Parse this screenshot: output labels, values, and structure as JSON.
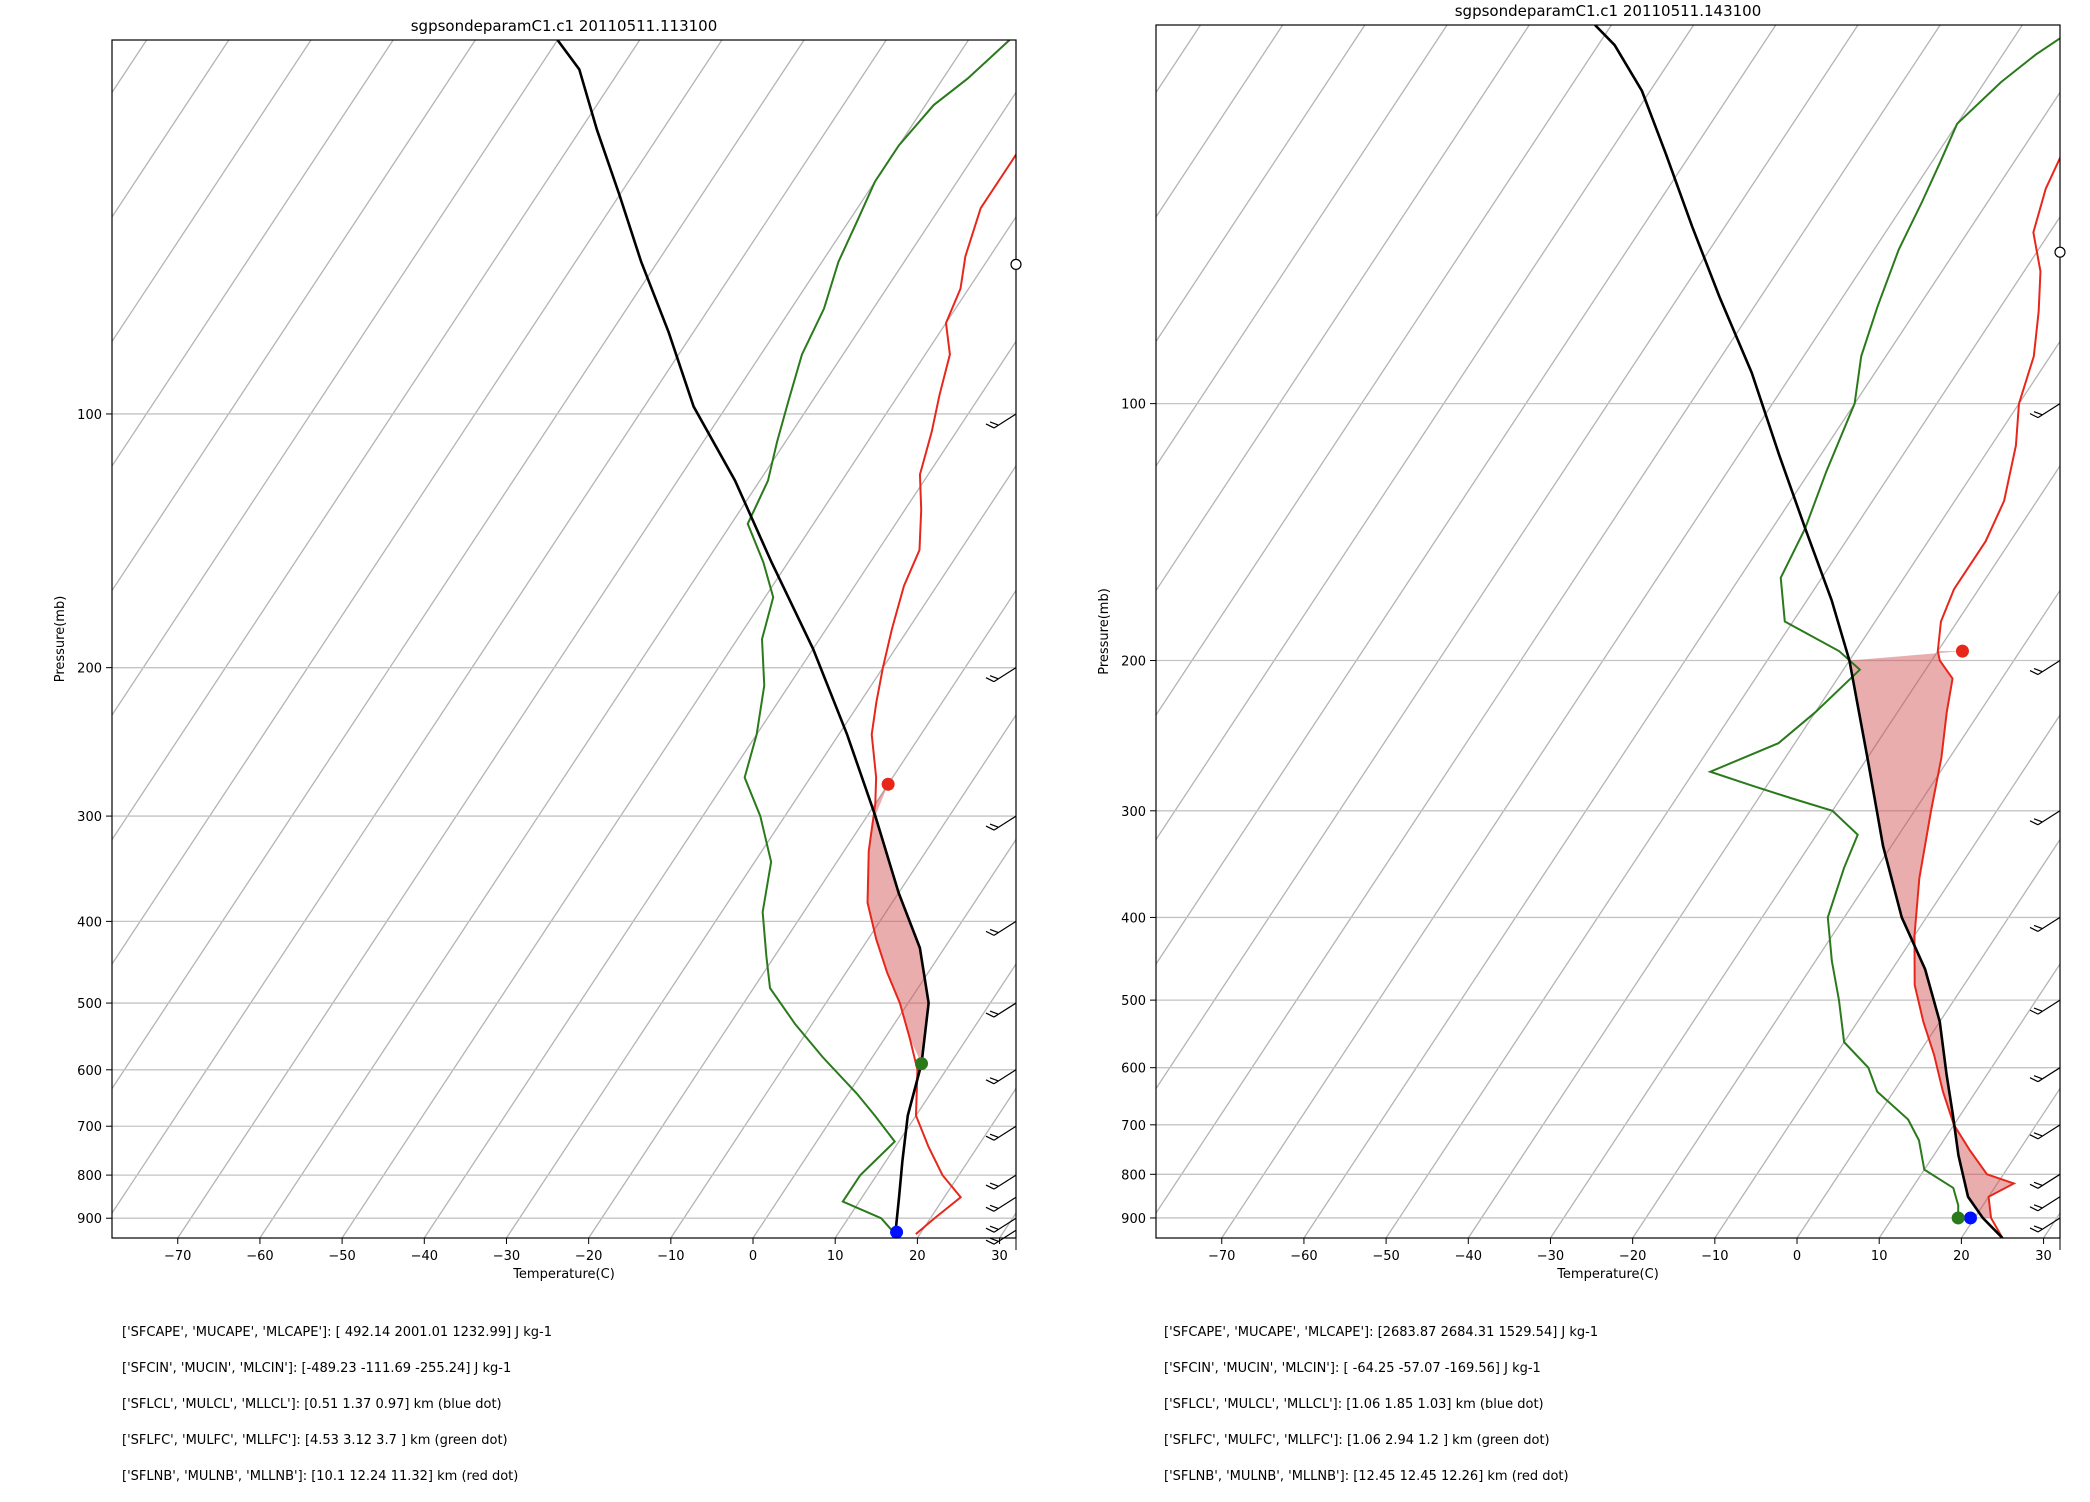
{
  "chart_data": [
    {
      "type": "line",
      "title": "sgpsondeparamC1.c1  20110511.113100",
      "xlabel": "Temperature(C)",
      "ylabel": "Pressure(mb)",
      "xlim": [
        -78,
        32
      ],
      "ylim": [
        950,
        36
      ],
      "log_y": true,
      "skew": true,
      "grid": true,
      "xticks": [
        -70,
        -60,
        -50,
        -40,
        -30,
        -20,
        -10,
        0,
        10,
        20,
        30
      ],
      "yticks": [
        100,
        200,
        300,
        400,
        500,
        600,
        700,
        800,
        900
      ],
      "series": [
        {
          "color": "#e8271b",
          "points": [
            [
              19.5,
              940
            ],
            [
              20.5,
              900
            ],
            [
              22,
              850
            ],
            [
              18,
              800
            ],
            [
              14,
              740
            ],
            [
              10,
              680
            ],
            [
              6.5,
              600
            ],
            [
              3,
              550
            ],
            [
              -1,
              500
            ],
            [
              -5,
              460
            ],
            [
              -9,
              420
            ],
            [
              -13,
              380
            ],
            [
              -17,
              330
            ],
            [
              -20,
              290
            ],
            [
              -22,
              270
            ],
            [
              -26,
              240
            ],
            [
              -28,
              220
            ],
            [
              -30,
              200
            ],
            [
              -32,
              180
            ],
            [
              -34,
              160
            ],
            [
              -35,
              145
            ],
            [
              -38,
              130
            ],
            [
              -41,
              118
            ],
            [
              -43,
              105
            ],
            [
              -45,
              95
            ],
            [
              -47,
              85
            ],
            [
              -50,
              78
            ],
            [
              -51,
              71
            ],
            [
              -53,
              65
            ],
            [
              -55,
              57
            ],
            [
              -55,
              50
            ],
            [
              -55,
              46
            ],
            [
              -53,
              42
            ],
            [
              -51,
              38
            ],
            [
              -47,
              36
            ]
          ]
        },
        {
          "color": "#2a7a1c",
          "points": [
            [
              17,
              940
            ],
            [
              14,
              900
            ],
            [
              8,
              860
            ],
            [
              8,
              800
            ],
            [
              9.5,
              730
            ],
            [
              5,
              680
            ],
            [
              1,
              640
            ],
            [
              -6,
              580
            ],
            [
              -12,
              530
            ],
            [
              -18,
              480
            ],
            [
              -21,
              440
            ],
            [
              -25,
              390
            ],
            [
              -28,
              340
            ],
            [
              -33,
              300
            ],
            [
              -38,
              270
            ],
            [
              -40,
              240
            ],
            [
              -43,
              210
            ],
            [
              -47,
              185
            ],
            [
              -49,
              165
            ],
            [
              -53,
              150
            ],
            [
              -58,
              135
            ],
            [
              -59,
              120
            ],
            [
              -61,
              108
            ],
            [
              -63,
              96
            ],
            [
              -65,
              85
            ],
            [
              -66,
              75
            ],
            [
              -68,
              66
            ],
            [
              -69,
              59
            ],
            [
              -70,
              53
            ],
            [
              -70,
              48
            ],
            [
              -69,
              43
            ],
            [
              -67,
              40
            ],
            [
              -65,
              36
            ]
          ]
        },
        {
          "color": "#000000",
          "points": [
            [
              17,
              940
            ],
            [
              14.5,
              850
            ],
            [
              12,
              770
            ],
            [
              9,
              680
            ],
            [
              6.5,
              590
            ],
            [
              2.5,
              500
            ],
            [
              -3,
              430
            ],
            [
              -10,
              370
            ],
            [
              -19,
              300
            ],
            [
              -29,
              240
            ],
            [
              -40,
              190
            ],
            [
              -52,
              150
            ],
            [
              -63,
              120
            ],
            [
              -74,
              98
            ],
            [
              -83,
              80
            ],
            [
              -92,
              66
            ],
            [
              -100,
              55
            ],
            [
              -108,
              46
            ],
            [
              -115,
              39
            ],
            [
              -120,
              36
            ]
          ]
        }
      ],
      "points_of_interest": [
        {
          "name": "LCL",
          "color": "#0010ff",
          "t": 17,
          "p": 935
        },
        {
          "name": "LFC",
          "color": "#2a7a1c",
          "t": 6.5,
          "p": 590
        },
        {
          "name": "LNB",
          "color": "#e8271b",
          "t": -20,
          "p": 275
        }
      ],
      "wind_barbs": [
        100,
        200,
        300,
        400,
        500,
        600,
        700,
        800,
        850,
        900,
        930
      ],
      "info_lines": [
        "['SFCAPE', 'MUCAPE', 'MLCAPE']: [ 492.14 2001.01 1232.99] J kg-1",
        "['SFCIN', 'MUCIN', 'MLCIN']: [-489.23 -111.69 -255.24] J kg-1",
        "['SFLCL', 'MULCL', 'MLLCL']: [0.51 1.37 0.97] km (blue dot)",
        "['SFLFC', 'MULFC', 'MLLFC']: [4.53 3.12 3.7 ] km (green dot)",
        "['SFLNB', 'MULNB', 'MLLNB']: [10.1  12.24 11.32] km (red dot)"
      ]
    },
    {
      "type": "line",
      "title": "sgpsondeparamC1.c1  20110511.143100",
      "xlabel": "Temperature(C)",
      "ylabel": "Pressure(mb)",
      "xlim": [
        -78,
        32
      ],
      "ylim": [
        950,
        36
      ],
      "log_y": true,
      "skew": true,
      "grid": true,
      "xticks": [
        -70,
        -60,
        -50,
        -40,
        -30,
        -20,
        -10,
        0,
        10,
        20,
        30
      ],
      "yticks": [
        100,
        200,
        300,
        400,
        500,
        600,
        700,
        800,
        900
      ],
      "series": [
        {
          "color": "#e8271b",
          "points": [
            [
              25,
              950
            ],
            [
              22,
              900
            ],
            [
              20,
              850
            ],
            [
              22,
              820
            ],
            [
              18,
              800
            ],
            [
              14,
              750
            ],
            [
              10,
              700
            ],
            [
              6,
              640
            ],
            [
              2,
              580
            ],
            [
              -2,
              530
            ],
            [
              -6,
              480
            ],
            [
              -10,
              420
            ],
            [
              -14,
              360
            ],
            [
              -18,
              300
            ],
            [
              -21,
              260
            ],
            [
              -24,
              230
            ],
            [
              -26,
              210
            ],
            [
              -29,
              200
            ],
            [
              -30,
              195
            ],
            [
              -32,
              180
            ],
            [
              -33,
              165
            ],
            [
              -33,
              145
            ],
            [
              -34,
              130
            ],
            [
              -37,
              112
            ],
            [
              -40,
              100
            ],
            [
              -42,
              88
            ],
            [
              -45,
              78
            ],
            [
              -48,
              70
            ],
            [
              -52,
              63
            ],
            [
              -54,
              56
            ],
            [
              -55,
              50
            ],
            [
              -54,
              45
            ],
            [
              -52,
              41
            ],
            [
              -50,
              37
            ]
          ]
        },
        {
          "color": "#2a7a1c",
          "points": [
            [
              18,
              900
            ],
            [
              17,
              870
            ],
            [
              15,
              830
            ],
            [
              10,
              790
            ],
            [
              7,
              730
            ],
            [
              4,
              690
            ],
            [
              -2,
              640
            ],
            [
              -5,
              600
            ],
            [
              -10,
              560
            ],
            [
              -14,
              500
            ],
            [
              -18,
              450
            ],
            [
              -22,
              400
            ],
            [
              -24,
              350
            ],
            [
              -25,
              320
            ],
            [
              -30,
              300
            ],
            [
              -36,
              290
            ],
            [
              -42,
              280
            ],
            [
              -48,
              270
            ],
            [
              -42,
              250
            ],
            [
              -40,
              230
            ],
            [
              -38,
              205
            ],
            [
              -42,
              195
            ],
            [
              -51,
              180
            ],
            [
              -55,
              160
            ],
            [
              -56,
              140
            ],
            [
              -58,
              120
            ],
            [
              -60,
              100
            ],
            [
              -63,
              88
            ],
            [
              -65,
              77
            ],
            [
              -67,
              66
            ],
            [
              -68,
              58
            ],
            [
              -69,
              52
            ],
            [
              -70,
              47
            ],
            [
              -68,
              42
            ],
            [
              -66,
              39
            ],
            [
              -63,
              36
            ]
          ]
        },
        {
          "color": "#000000",
          "points": [
            [
              25,
              950
            ],
            [
              21,
              900
            ],
            [
              17.5,
              850
            ],
            [
              13,
              760
            ],
            [
              9,
              680
            ],
            [
              5,
              610
            ],
            [
              0,
              530
            ],
            [
              -6,
              460
            ],
            [
              -13,
              400
            ],
            [
              -21,
              330
            ],
            [
              -30,
              260
            ],
            [
              -40,
              200
            ],
            [
              -47,
              170
            ],
            [
              -56,
              140
            ],
            [
              -65,
              115
            ],
            [
              -75,
              92
            ],
            [
              -85,
              75
            ],
            [
              -94,
              62
            ],
            [
              -103,
              51
            ],
            [
              -111,
              43
            ],
            [
              -118,
              38
            ],
            [
              -122,
              36
            ]
          ]
        }
      ],
      "points_of_interest": [
        {
          "name": "LCL",
          "color": "#0010ff",
          "t": 19.5,
          "p": 900
        },
        {
          "name": "LFC",
          "color": "#2a7a1c",
          "t": 18,
          "p": 900
        },
        {
          "name": "LNB",
          "color": "#e8271b",
          "t": -27,
          "p": 195
        }
      ],
      "wind_barbs": [
        100,
        200,
        300,
        400,
        500,
        600,
        700,
        800,
        850,
        900
      ],
      "info_lines": [
        "['SFCAPE', 'MUCAPE', 'MLCAPE']: [2683.87 2684.31 1529.54] J kg-1",
        "['SFCIN', 'MUCIN', 'MLCIN']: [ -64.25  -57.07 -169.56] J kg-1",
        "['SFLCL', 'MULCL', 'MLLCL']: [1.06 1.85 1.03] km (blue dot)",
        "['SFLFC', 'MULFC', 'MLLFC']: [1.06 2.94 1.2 ] km (green dot)",
        "['SFLNB', 'MULNB', 'MLLNB']: [12.45 12.45 12.26] km (red dot)"
      ]
    }
  ]
}
